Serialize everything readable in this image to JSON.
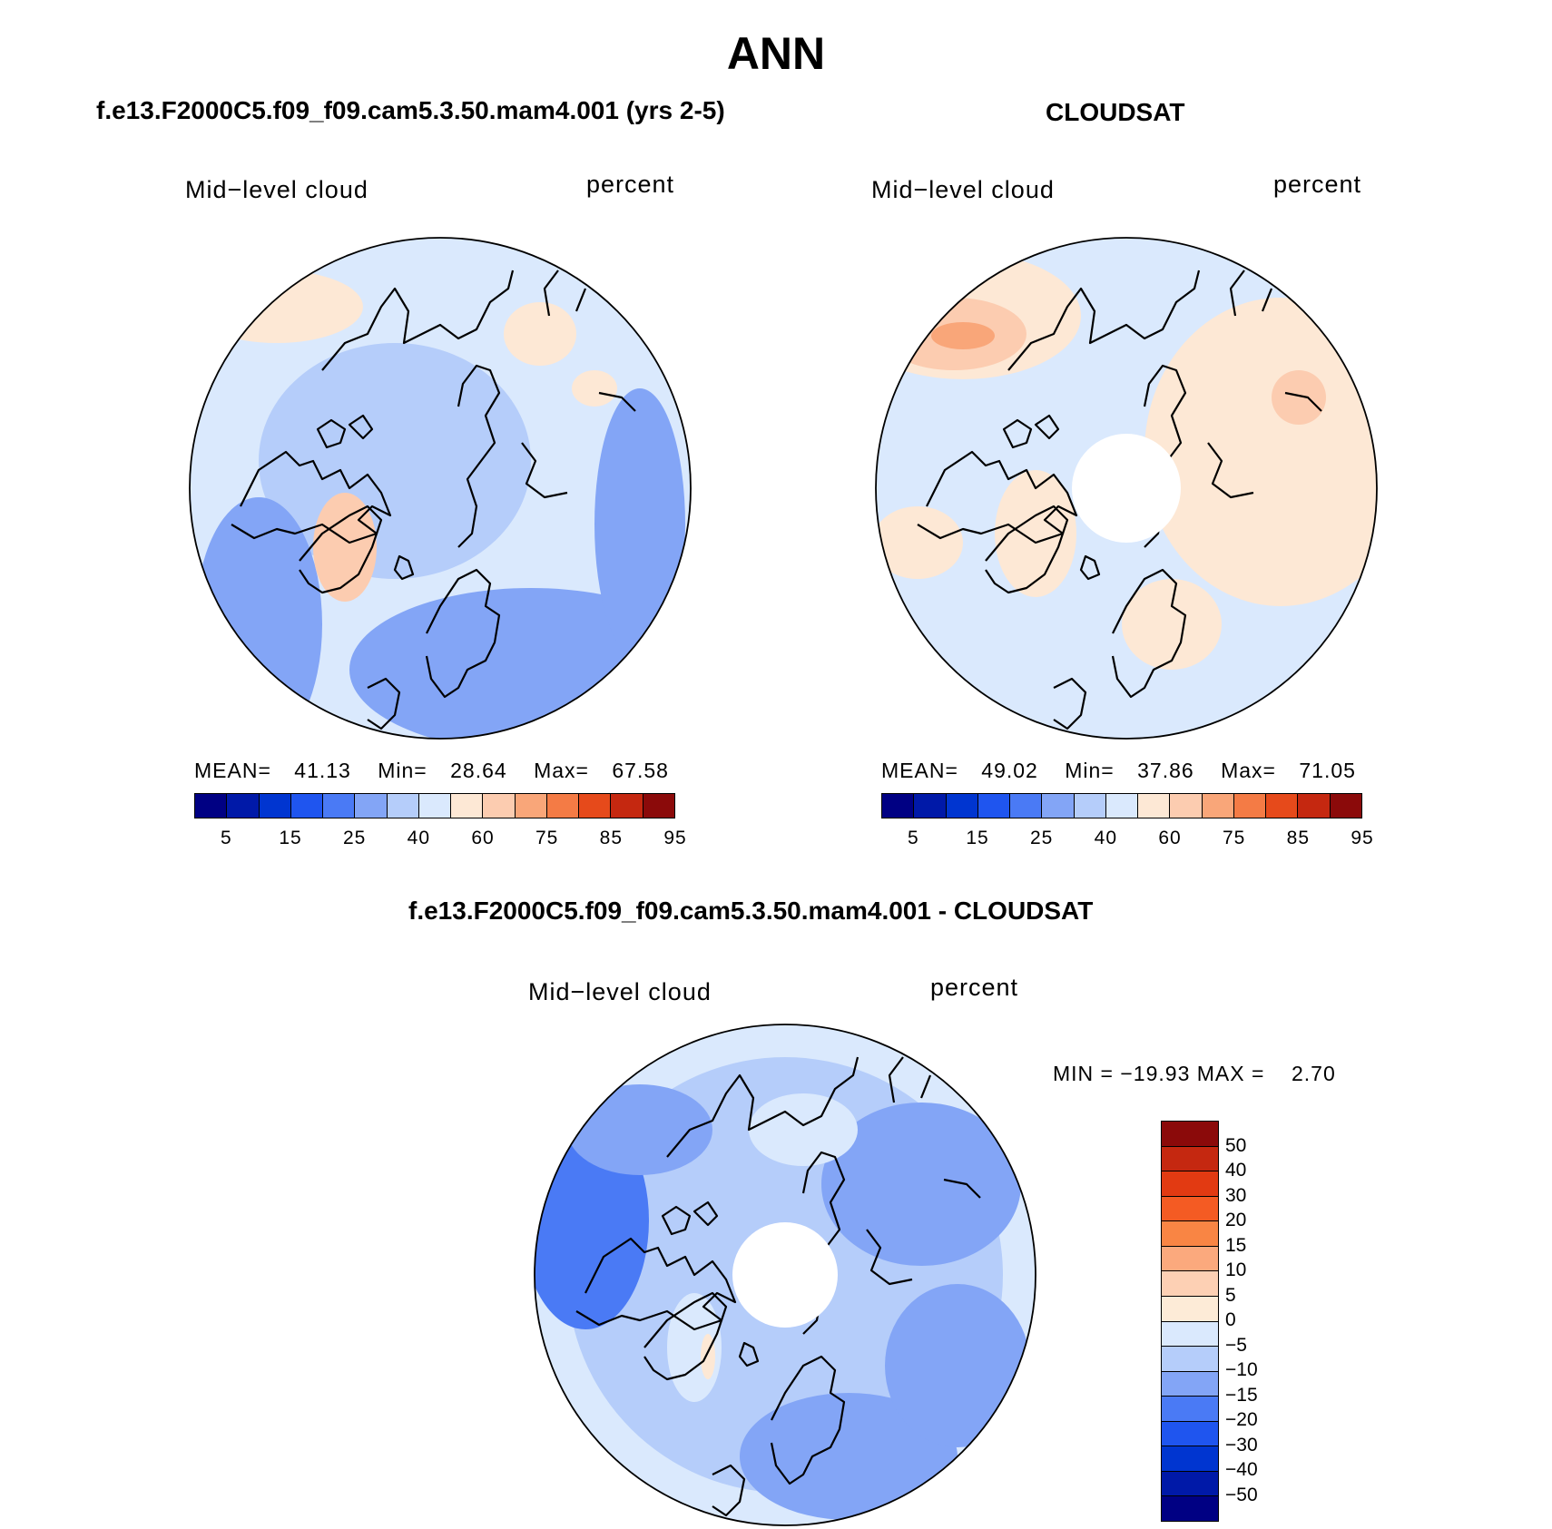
{
  "main_title": "ANN",
  "panels": [
    {
      "title": "f.e13.F2000C5.f09_f09.cam5.3.50.mam4.001 (yrs 2-5)",
      "variable": "Mid−level cloud",
      "units": "percent",
      "stats": {
        "mean_label": "MEAN=",
        "mean": "41.13",
        "min_label": "Min=",
        "min": "28.64",
        "max_label": "Max=",
        "max": "67.58"
      }
    },
    {
      "title": "CLOUDSAT",
      "variable": "Mid−level cloud",
      "units": "percent",
      "stats": {
        "mean_label": "MEAN=",
        "mean": "49.02",
        "min_label": "Min=",
        "min": "37.86",
        "max_label": "Max=",
        "max": "71.05"
      }
    },
    {
      "title": "f.e13.F2000C5.f09_f09.cam5.3.50.mam4.001 - CLOUDSAT",
      "variable": "Mid−level cloud",
      "units": "percent",
      "minmax_text": "MIN = −19.93 MAX =    2.70"
    }
  ],
  "colorbar_top": {
    "colors": [
      "#000083",
      "#0019a8",
      "#0035d0",
      "#1f55ef",
      "#4a7af5",
      "#83a5f6",
      "#b5cdfa",
      "#dae9fd",
      "#fde8d5",
      "#fcccb0",
      "#f9a679",
      "#f47b45",
      "#e64a1b",
      "#c52810",
      "#8b0a0a"
    ],
    "tick_labels": [
      "5",
      "15",
      "25",
      "40",
      "60",
      "75",
      "85",
      "95"
    ]
  },
  "colorbar_diff": {
    "colors": [
      "#8b0a0a",
      "#c52810",
      "#e23a12",
      "#f45b23",
      "#f98544",
      "#fba97d",
      "#fdd0b4",
      "#fdebd7",
      "#dae9fd",
      "#b5cdfa",
      "#83a5f6",
      "#4a7af5",
      "#1f55ef",
      "#0035d0",
      "#0019a8",
      "#000083"
    ],
    "tick_labels": [
      "50",
      "40",
      "30",
      "20",
      "15",
      "10",
      "5",
      "0",
      "−5",
      "−10",
      "−15",
      "−20",
      "−30",
      "−40",
      "−50"
    ]
  },
  "map_fields": {
    "panel1_palette": [
      "#dae9fd",
      "#b5cdfa",
      "#83a5f6",
      "#fde8d5",
      "#fcccb0"
    ],
    "panel2_palette": [
      "#dae9fd",
      "#fde8d5",
      "#fcccb0",
      "#f9a679"
    ],
    "diff_palette": [
      "#dae9fd",
      "#b5cdfa",
      "#83a5f6",
      "#4a7af5",
      "#fde8d5"
    ],
    "missing_color": "#ffffff"
  }
}
